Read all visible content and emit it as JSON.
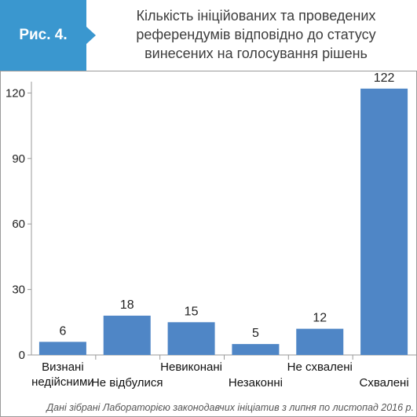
{
  "header": {
    "figure_label": "Рис. 4.",
    "title_lines": [
      "Кількість ініційованих та проведених",
      "референдумів відповідно до статусу",
      "винесених на голосування рішень"
    ]
  },
  "footnote": "Дані зібрані Лабораторією законодавчих ініціатив з липня по листопад 2016 р.",
  "colors": {
    "accent": "#3a97cf",
    "bar": "#4f86c6"
  },
  "chart_data": {
    "type": "bar",
    "categories": [
      [
        "Визнані",
        "недійсними"
      ],
      [
        "Не відбулися"
      ],
      [
        "Невиконані"
      ],
      [
        "Незаконні"
      ],
      [
        "Не схвалені"
      ],
      [
        "Схвалені"
      ]
    ],
    "values": [
      6,
      18,
      15,
      5,
      12,
      122
    ],
    "yticks": [
      0,
      30,
      60,
      90,
      120
    ],
    "ylim": [
      0,
      130
    ],
    "title": "",
    "xlabel": "",
    "ylabel": "",
    "grid": false,
    "legend": "none"
  }
}
